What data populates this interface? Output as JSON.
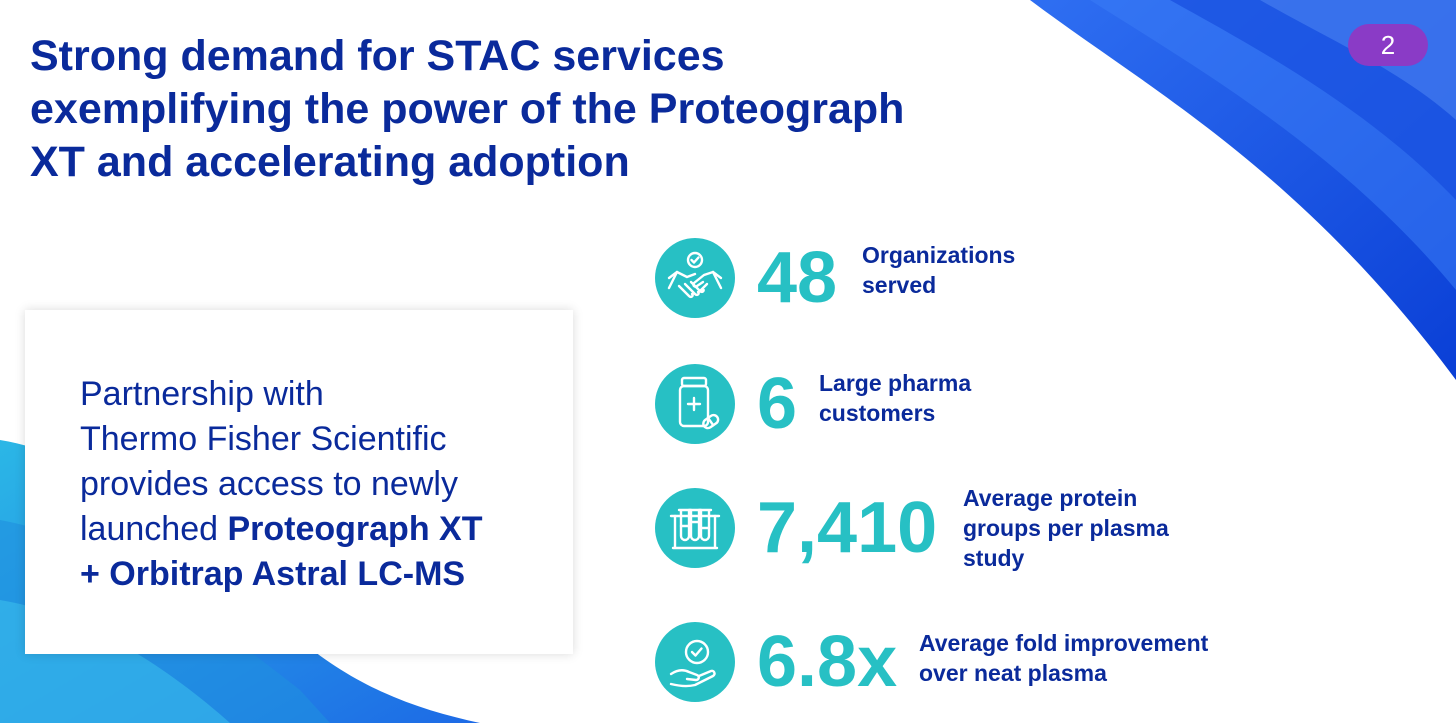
{
  "title": {
    "lines": [
      "Strong demand for STAC services",
      "exemplifying the power of the Proteograph",
      "XT and accelerating adoption"
    ]
  },
  "page_number": "2",
  "card": {
    "lines": [
      [
        {
          "text": "Partnership with",
          "bold": false
        }
      ],
      [
        {
          "text": "Thermo Fisher Scientific",
          "bold": false
        }
      ],
      [
        {
          "text": "provides access to newly",
          "bold": false
        }
      ],
      [
        {
          "text": "launched ",
          "bold": false
        },
        {
          "text": "Proteograph XT",
          "bold": true
        }
      ],
      [
        {
          "text": "+ Orbitrap Astral LC-MS",
          "bold": true
        }
      ]
    ]
  },
  "stats": [
    {
      "value": "48",
      "label": [
        "Organizations",
        "served"
      ],
      "icon": "handshake-icon"
    },
    {
      "value": "6",
      "label": [
        "Large pharma",
        "customers"
      ],
      "icon": "medicine-bottle-icon"
    },
    {
      "value": "7,410",
      "label": [
        "Average protein",
        "groups per plasma",
        "study"
      ],
      "icon": "test-tubes-icon"
    },
    {
      "value": "6.8x",
      "label": [
        "Average fold improvement",
        "over neat plasma"
      ],
      "icon": "hand-check-icon"
    }
  ],
  "colors": {
    "title": "#0a2a9b",
    "accent_teal": "#27c0c4",
    "badge": "#8a3bc6",
    "wave_blue": "#1a4fe0"
  }
}
